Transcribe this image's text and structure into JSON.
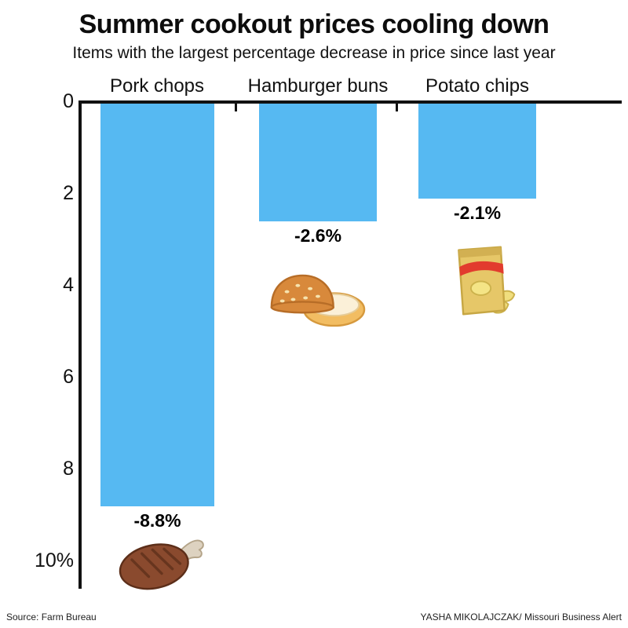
{
  "title": "Summer cookout prices cooling down",
  "subtitle": "Items with the largest percentage decrease in price since last year",
  "chart_data": {
    "type": "bar",
    "direction": "downward",
    "title": "Summer cookout prices cooling down",
    "subtitle": "Items with the largest percentage decrease in price since last year",
    "categories": [
      "Pork chops",
      "Hamburger buns",
      "Potato chips"
    ],
    "values": [
      -8.8,
      -2.6,
      -2.1
    ],
    "value_labels": [
      "-8.8%",
      "-2.6%",
      "-2.1%"
    ],
    "unit": "percent decrease",
    "yticks": [
      "0",
      "2",
      "4",
      "6",
      "8",
      "10%"
    ],
    "ytick_values": [
      0,
      2,
      4,
      6,
      8,
      10
    ],
    "ylim": [
      0,
      10
    ],
    "bar_color": "#56b9f2",
    "axis_color": "#111111",
    "grid": false,
    "legend": "none",
    "icons": [
      "pork-chop",
      "hamburger-buns",
      "potato-chips-bag"
    ]
  },
  "footer": {
    "source": "Source: Farm Bureau",
    "credit": "YASHA MIKOLAJCZAK/ Missouri Business Alert"
  }
}
